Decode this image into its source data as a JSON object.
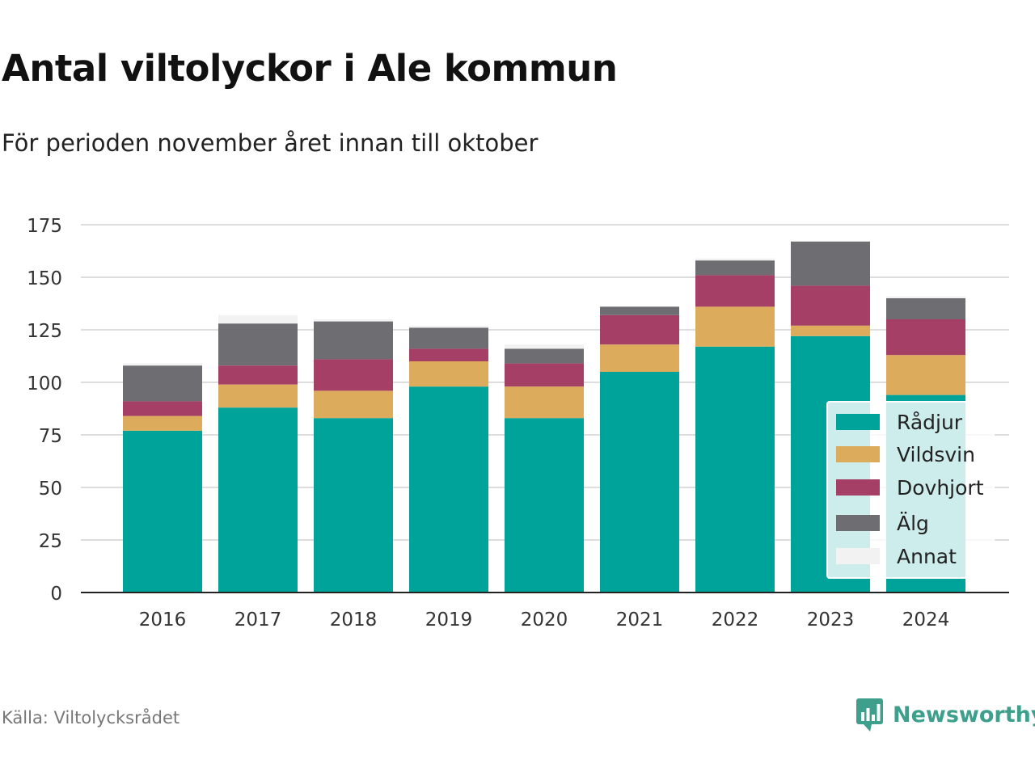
{
  "title": "Antal viltolyckor i Ale kommun",
  "subtitle": "För perioden november året innan till oktober",
  "source": "Källa: Viltolycksrådet",
  "brand": "Newsworthy",
  "colors": {
    "Rådjur": "#00a39a",
    "Vildsvin": "#dcab5b",
    "Dovhjort": "#a63f66",
    "Älg": "#6d6d72",
    "Annat": "#f2f2f2",
    "brand": "#3d9f8c"
  },
  "chart_data": {
    "type": "bar",
    "stacked": true,
    "categories": [
      "2016",
      "2017",
      "2018",
      "2019",
      "2020",
      "2021",
      "2022",
      "2023",
      "2024"
    ],
    "ylim": [
      0,
      175
    ],
    "yticks": [
      0,
      25,
      50,
      75,
      100,
      125,
      150,
      175
    ],
    "grid": true,
    "legend_position": "bottom-right",
    "series": [
      {
        "name": "Rådjur",
        "values": [
          77,
          88,
          83,
          98,
          83,
          105,
          117,
          122,
          94
        ]
      },
      {
        "name": "Vildsvin",
        "values": [
          7,
          11,
          13,
          12,
          15,
          13,
          19,
          5,
          19
        ]
      },
      {
        "name": "Dovhjort",
        "values": [
          7,
          9,
          15,
          6,
          11,
          14,
          15,
          19,
          17
        ]
      },
      {
        "name": "Älg",
        "values": [
          17,
          20,
          18,
          10,
          7,
          4,
          7,
          21,
          10
        ]
      },
      {
        "name": "Annat",
        "values": [
          1,
          4,
          1,
          1,
          2,
          0,
          1,
          0,
          1
        ]
      }
    ]
  }
}
